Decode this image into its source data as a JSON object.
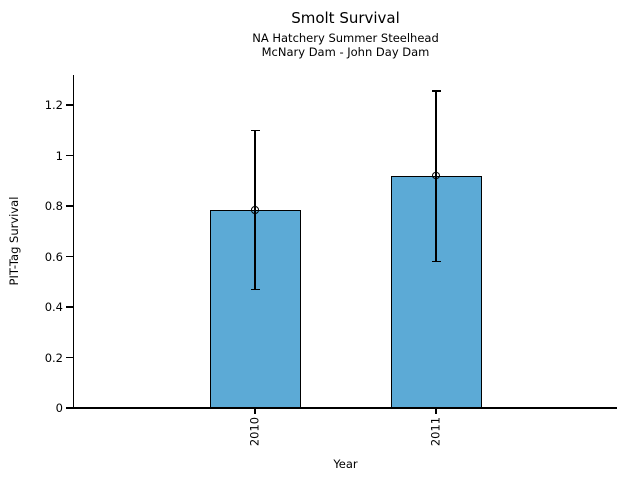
{
  "chart_data": {
    "type": "bar",
    "title": "Smolt Survival",
    "subtitle1": "NA Hatchery Summer Steelhead",
    "subtitle2": "McNary Dam - John Day Dam",
    "xlabel": "Year",
    "ylabel": "PIT-Tag Survival",
    "categories": [
      "2010",
      "2011"
    ],
    "values": [
      0.785,
      0.92
    ],
    "error_bars": [
      {
        "low": 0.47,
        "high": 1.1
      },
      {
        "low": 0.58,
        "high": 1.255
      }
    ],
    "yticks": [
      0,
      0.2,
      0.4,
      0.6,
      0.8,
      1,
      1.2
    ],
    "ylim": [
      0,
      1.32
    ],
    "grid": false,
    "legend": null,
    "marker": "open-circle",
    "bar_color": "#5caad6",
    "bar_edge_color": "#000000",
    "axis_color": "#000000"
  }
}
